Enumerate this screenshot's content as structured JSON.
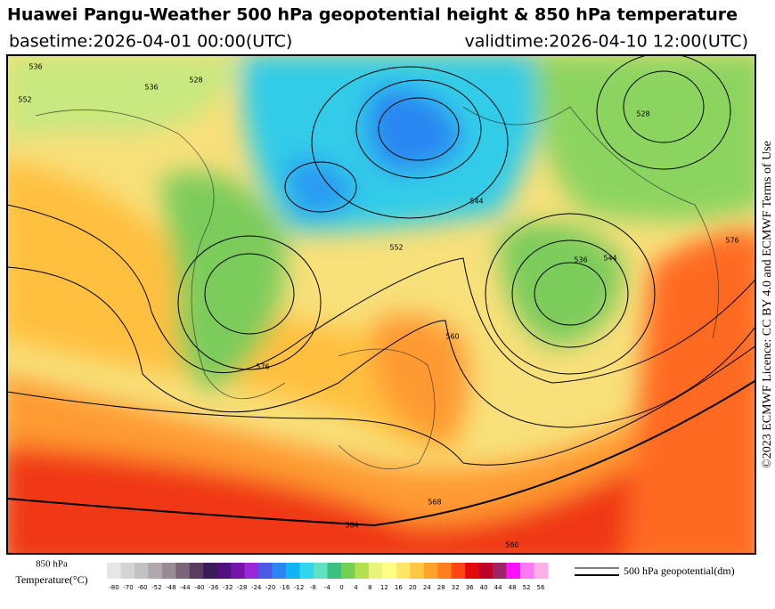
{
  "header": {
    "title": "Huawei Pangu-Weather 500 hPa geopotential height & 850 hPa temperature",
    "basetime": "basetime:2026-04-01 00:00(UTC)",
    "validtime": "validtime:2026-04-10 12:00(UTC)"
  },
  "license": "©2023 ECMWF Licence: CC BY 4.0 and ECMWF Terms of Use",
  "map": {
    "contour_labels": [
      "536",
      "528",
      "552",
      "536",
      "544",
      "552",
      "536",
      "544",
      "528",
      "560",
      "576",
      "584",
      "568",
      "560",
      "576"
    ]
  },
  "colorbar": {
    "title_line1": "850 hPa",
    "title_line2": "Temperature(°C)",
    "labels": [
      "-80",
      "-70",
      "-60",
      "-52",
      "-48",
      "-44",
      "-40",
      "-36",
      "-32",
      "-28",
      "-24",
      "-20",
      "-16",
      "-12",
      "-8",
      "-4",
      "0",
      "4",
      "8",
      "12",
      "16",
      "20",
      "24",
      "28",
      "32",
      "36",
      "40",
      "44",
      "48",
      "52",
      "56"
    ],
    "colors": [
      "#e6e6e6",
      "#d4d4d4",
      "#c2c2c2",
      "#b0a8ac",
      "#9a8a94",
      "#7a6478",
      "#5a3c5e",
      "#3c1c56",
      "#501080",
      "#7414a8",
      "#9a28d8",
      "#4a5ae6",
      "#2a86f2",
      "#10b4f4",
      "#30d6ee",
      "#60e2c2",
      "#3cc080",
      "#74d050",
      "#b4e050",
      "#e8f47a",
      "#ffff84",
      "#ffe664",
      "#ffc844",
      "#ffa428",
      "#ff7e1e",
      "#ff4614",
      "#e00a0a",
      "#c00028",
      "#9e2464",
      "#ff10ff",
      "#ff78f4",
      "#ffb0e8"
    ]
  },
  "legend": {
    "label": "500 hPa geopotential(dm)"
  }
}
